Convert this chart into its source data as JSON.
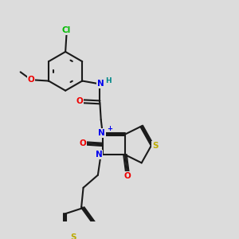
{
  "bg_color": "#dcdcdc",
  "bond_color": "#1a1a1a",
  "bond_lw": 1.5,
  "atom_colors": {
    "N": "#0000ee",
    "O": "#ee0000",
    "S": "#bbaa00",
    "Cl": "#00bb00",
    "H": "#008888",
    "C": "#1a1a1a"
  },
  "fs": 7.5,
  "fs_small": 6.5
}
